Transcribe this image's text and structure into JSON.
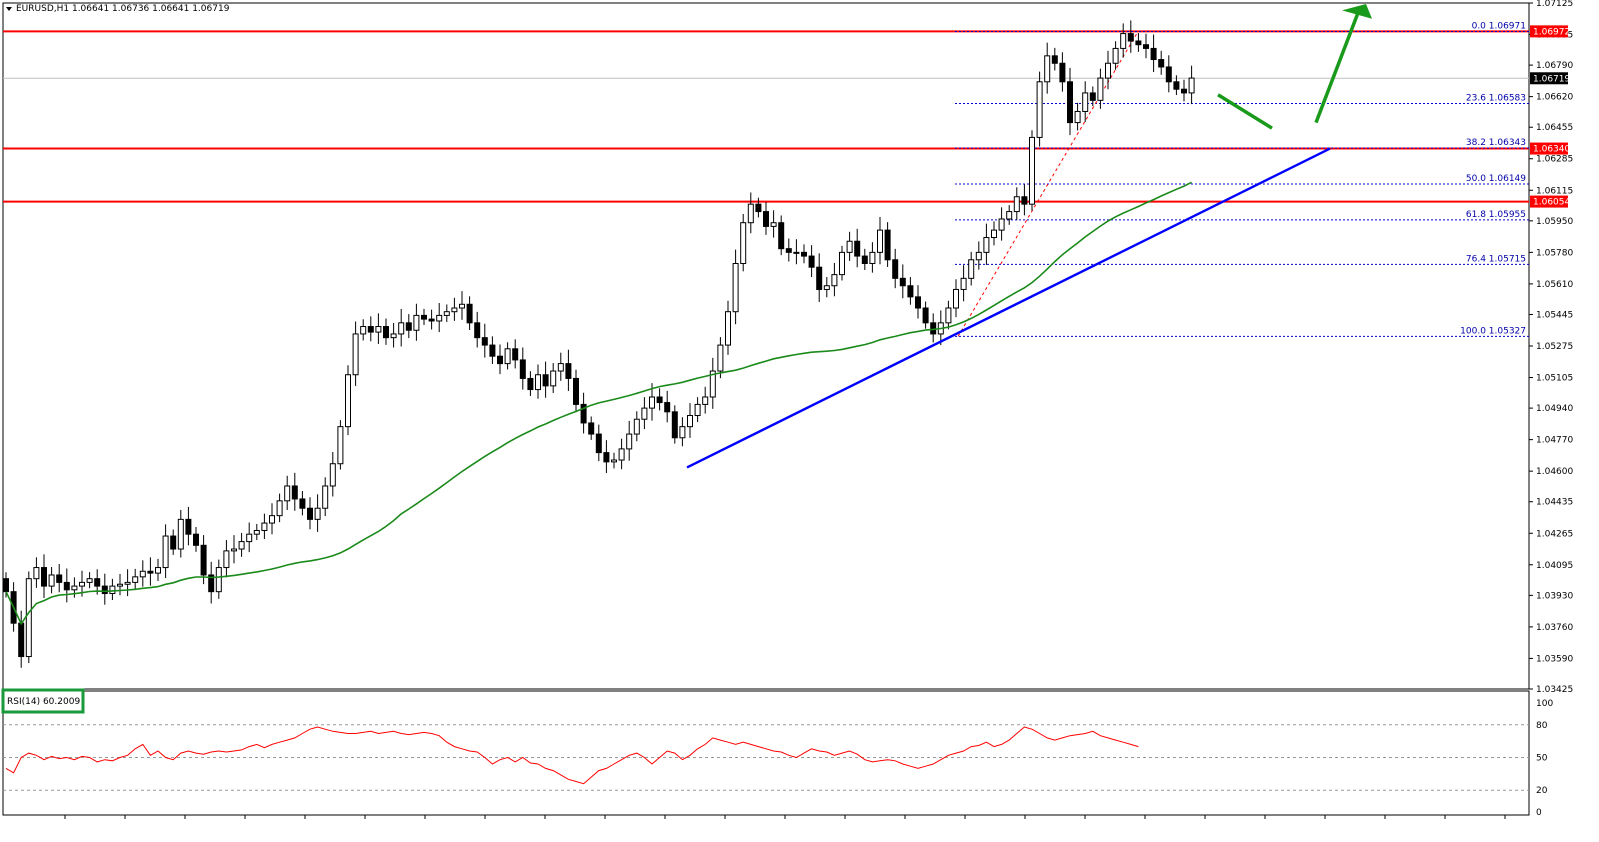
{
  "header": {
    "symbol_text": "EURUSD,H1  1.06641 1.06736 1.06641 1.06719"
  },
  "chart_data": [
    {
      "type": "candlestick",
      "symbol": "EURUSD",
      "timeframe": "H1",
      "ohlc_header": {
        "open": 1.06641,
        "high": 1.06736,
        "low": 1.06641,
        "close": 1.06719
      },
      "y_ticks": [
        "1.07125",
        "1.06955",
        "1.06790",
        "1.06620",
        "1.06455",
        "1.06285",
        "1.06115",
        "1.05950",
        "1.05780",
        "1.05610",
        "1.05445",
        "1.05275",
        "1.05105",
        "1.04940",
        "1.04770",
        "1.04600",
        "1.04435",
        "1.04265",
        "1.04095",
        "1.03930",
        "1.03760",
        "1.03590",
        "1.03425"
      ],
      "ylim": [
        1.03425,
        1.07125
      ],
      "current_price": "1.06719",
      "levels": [
        {
          "price": 1.06972,
          "label": "1.06972",
          "color": "#ff0000"
        },
        {
          "price": 1.0634,
          "label": "1.06340",
          "color": "#ff0000"
        },
        {
          "price": 1.06054,
          "label": "1.06054",
          "color": "#ff0000"
        }
      ],
      "fibonacci": [
        {
          "level": "0.0",
          "price": 1.06971,
          "label": "0.0 1.06971"
        },
        {
          "level": "23.6",
          "price": 1.06583,
          "label": "23.6 1.06583"
        },
        {
          "level": "38.2",
          "price": 1.06343,
          "label": "38.2 1.06343"
        },
        {
          "level": "50.0",
          "price": 1.06149,
          "label": "50.0 1.06149"
        },
        {
          "level": "61.8",
          "price": 1.05955,
          "label": "61.8 1.05955"
        },
        {
          "level": "76.4",
          "price": 1.05715,
          "label": "76.4 1.05715"
        },
        {
          "level": "100.0",
          "price": 1.05327,
          "label": "100.0 1.05327"
        }
      ],
      "trendline": {
        "from": [
          0,
          1.0462
        ],
        "to": [
          1,
          1.0634
        ],
        "color": "#0000ff"
      },
      "moving_average_color": "#1a8a1a",
      "closes": [
        1.0395,
        1.0378,
        1.036,
        1.0402,
        1.0408,
        1.0398,
        1.0404,
        1.04,
        1.0396,
        1.0398,
        1.04,
        1.0402,
        1.0398,
        1.0394,
        1.0398,
        1.0399,
        1.04,
        1.0403,
        1.0406,
        1.0405,
        1.0408,
        1.0425,
        1.0418,
        1.0434,
        1.0426,
        1.042,
        1.0404,
        1.0395,
        1.0408,
        1.0417,
        1.0418,
        1.0422,
        1.0426,
        1.0428,
        1.0432,
        1.0436,
        1.0444,
        1.0452,
        1.0445,
        1.044,
        1.0434,
        1.044,
        1.0452,
        1.0464,
        1.0484,
        1.0512,
        1.0534,
        1.0538,
        1.0535,
        1.0538,
        1.0532,
        1.0534,
        1.054,
        1.0536,
        1.0544,
        1.0542,
        1.0541,
        1.0544,
        1.0546,
        1.0548,
        1.055,
        1.054,
        1.0532,
        1.0528,
        1.0522,
        1.0518,
        1.0526,
        1.052,
        1.051,
        1.0504,
        1.0512,
        1.0506,
        1.0514,
        1.0518,
        1.051,
        1.0496,
        1.0486,
        1.048,
        1.047,
        1.0465,
        1.0466,
        1.0472,
        1.048,
        1.0488,
        1.0494,
        1.05,
        1.0497,
        1.0492,
        1.0478,
        1.0484,
        1.049,
        1.0496,
        1.05,
        1.0514,
        1.0528,
        1.0546,
        1.0572,
        1.0594,
        1.0604,
        1.06,
        1.0592,
        1.0594,
        1.058,
        1.0578,
        1.0578,
        1.0576,
        1.057,
        1.0558,
        1.056,
        1.0566,
        1.0578,
        1.0584,
        1.0576,
        1.0572,
        1.0578,
        1.059,
        1.0574,
        1.0564,
        1.056,
        1.0554,
        1.0548,
        1.054,
        1.0534,
        1.054,
        1.0548,
        1.0558,
        1.0564,
        1.0574,
        1.0578,
        1.0586,
        1.059,
        1.0596,
        1.06,
        1.0608,
        1.0604,
        1.064,
        1.067,
        1.0684,
        1.068,
        1.067,
        1.0648,
        1.0654,
        1.0664,
        1.066,
        1.0672,
        1.068,
        1.0688,
        1.0696,
        1.0692,
        1.069,
        1.0688,
        1.0682,
        1.0678,
        1.067,
        1.0666,
        1.0664,
        1.0672
      ],
      "rsi": {
        "label": "RSI(14) 60.2009",
        "period": 14,
        "value": 60.2009,
        "levels": [
          80,
          50,
          20
        ],
        "y_ticks": [
          "100",
          "80",
          "50",
          "20",
          "0"
        ],
        "ylim": [
          0,
          100
        ],
        "color": "#ff0000",
        "values": [
          40,
          36,
          50,
          54,
          52,
          48,
          51,
          49,
          50,
          48,
          51,
          50,
          46,
          48,
          47,
          50,
          52,
          58,
          62,
          52,
          56,
          50,
          48,
          54,
          56,
          54,
          53,
          55,
          56,
          55,
          56,
          57,
          60,
          62,
          59,
          62,
          64,
          66,
          68,
          72,
          76,
          78,
          76,
          74,
          73,
          72,
          72,
          73,
          74,
          72,
          73,
          74,
          72,
          71,
          72,
          73,
          72,
          70,
          64,
          60,
          58,
          56,
          55,
          50,
          44,
          48,
          50,
          46,
          50,
          45,
          44,
          40,
          38,
          34,
          30,
          28,
          26,
          32,
          38,
          40,
          44,
          48,
          52,
          54,
          50,
          44,
          50,
          56,
          54,
          48,
          52,
          58,
          62,
          68,
          66,
          64,
          62,
          64,
          62,
          60,
          58,
          56,
          55,
          52,
          50,
          54,
          58,
          56,
          55,
          52,
          54,
          56,
          53,
          48,
          46,
          47,
          48,
          47,
          44,
          42,
          40,
          42,
          44,
          48,
          52,
          54,
          56,
          60,
          61,
          64,
          60,
          62,
          66,
          72,
          78,
          76,
          72,
          68,
          66,
          68,
          70,
          71,
          72,
          74,
          70,
          68,
          66,
          64,
          62,
          60
        ]
      }
    }
  ]
}
